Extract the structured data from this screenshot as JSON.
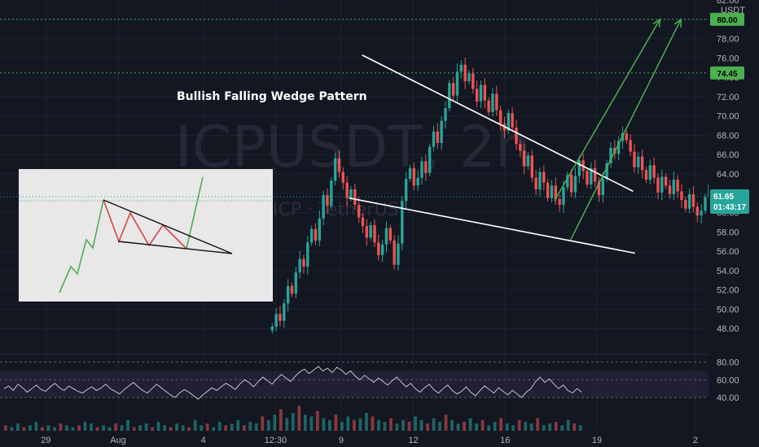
{
  "chart_data": {
    "type": "candlestick",
    "symbol_watermark": "ICPUSDT, 2h",
    "symbol_watermark_sub": "ICP · TetherUS",
    "annotation_title": "Bullish Falling Wedge Pattern",
    "currency_label": "USDT",
    "price_axis": {
      "range": [
        46,
        82
      ],
      "ticks": [
        82,
        80,
        78,
        76,
        74,
        72,
        70,
        68,
        66,
        64,
        62,
        60,
        58,
        56,
        54,
        52,
        50,
        48
      ]
    },
    "x_axis": {
      "range": [
        0,
        108
      ],
      "ticks": [
        {
          "label": "29",
          "x": 7
        },
        {
          "label": "Aug",
          "x": 18
        },
        {
          "label": "4",
          "x": 31
        },
        {
          "label": "12:30",
          "x": 42
        },
        {
          "label": "9",
          "x": 52
        },
        {
          "label": "12",
          "x": 63
        },
        {
          "label": "16",
          "x": 77
        },
        {
          "label": "19",
          "x": 91
        },
        {
          "label": "2",
          "x": 106
        }
      ]
    },
    "price_levels": [
      {
        "value": 80.0,
        "label": "80.00",
        "color": "#4caf50"
      },
      {
        "value": 74.45,
        "label": "74.45",
        "color": "#4caf50"
      }
    ],
    "last_price": {
      "value": 61.65,
      "label": "61.65",
      "countdown": "01:43:17",
      "color": "#26a69a"
    },
    "wedge_lines": [
      {
        "from": [
          55.2,
          76.3
        ],
        "to": [
          96.5,
          62.2
        ]
      },
      {
        "from": [
          53.2,
          61.5
        ],
        "to": [
          96.8,
          55.8
        ]
      }
    ],
    "projection_arrows": [
      {
        "from": [
          84.5,
          61.2
        ],
        "to": [
          100.6,
          80.0
        ]
      },
      {
        "from": [
          87.0,
          57.2
        ],
        "to": [
          103.8,
          80.0
        ]
      }
    ],
    "candles_start_x": 41.5,
    "candles_step": 0.6,
    "closes": [
      48.2,
      49.5,
      48.8,
      50.6,
      52.4,
      51.6,
      53.8,
      55.2,
      54.4,
      56.9,
      58.3,
      57.1,
      59.4,
      61.8,
      60.7,
      63.3,
      65.6,
      64.2,
      63.1,
      61.5,
      62.4,
      60.8,
      59.5,
      58.6,
      57.4,
      58.7,
      56.9,
      55.6,
      56.7,
      58.4,
      57.1,
      54.6,
      56.8,
      61.2,
      63.5,
      64.6,
      62.8,
      63.6,
      65.3,
      64.1,
      66.8,
      68.4,
      67.2,
      69.5,
      70.8,
      73.4,
      72.1,
      74.6,
      75.3,
      73.6,
      74.4,
      72.8,
      71.5,
      73.2,
      71.6,
      70.4,
      72.3,
      70.6,
      69.2,
      68.5,
      70.3,
      68.8,
      67.1,
      66.4,
      64.8,
      65.9,
      63.6,
      62.4,
      64.2,
      63.1,
      61.5,
      62.8,
      61.4,
      60.8,
      62.6,
      63.9,
      62.1,
      63.8,
      65.4,
      64.3,
      62.9,
      64.6,
      63.2,
      61.8,
      63.5,
      65.1,
      66.7,
      66.1,
      67.4,
      68.2,
      67.5,
      66.3,
      64.7,
      65.8,
      64.4,
      63.4,
      64.9,
      63.6,
      62.1,
      63.7,
      62.8,
      61.9,
      63.4,
      62.2,
      61.3,
      60.4,
      61.9,
      60.6,
      59.7,
      60.2,
      61.6,
      62.9,
      62.1,
      63.4,
      64.6,
      63.9,
      65.5,
      66.8,
      67.6,
      66.4,
      65.1,
      63.8,
      64.7,
      63.6,
      62.2,
      61.5,
      62.6,
      61.4,
      60.8,
      61.9,
      61.65
    ],
    "rsi": {
      "levels": [
        80,
        60,
        40
      ],
      "band": [
        40,
        70
      ],
      "values": [
        50,
        53,
        48,
        55,
        51,
        46,
        50,
        54,
        49,
        47,
        52,
        56,
        51,
        48,
        53,
        50,
        47,
        45,
        49,
        52,
        48,
        51,
        55,
        50,
        47,
        44,
        49,
        53,
        57,
        52,
        48,
        45,
        50,
        55,
        51,
        47,
        43,
        40,
        45,
        49,
        46,
        42,
        38,
        43,
        47,
        51,
        48,
        52,
        56,
        53,
        49,
        55,
        60,
        57,
        52,
        58,
        63,
        59,
        55,
        61,
        66,
        62,
        58,
        64,
        69,
        72,
        67,
        71,
        75,
        70,
        73,
        68,
        74,
        71,
        66,
        70,
        64,
        60,
        65,
        61,
        57,
        62,
        58,
        54,
        59,
        63,
        57,
        52,
        56,
        50,
        46,
        51,
        55,
        49,
        45,
        50,
        54,
        48,
        44,
        47,
        52,
        46,
        42,
        48,
        53,
        49,
        45,
        51,
        47,
        43,
        48,
        44,
        40,
        46,
        50,
        58,
        63,
        57,
        61,
        55,
        50,
        54,
        48,
        45,
        50,
        46
      ]
    },
    "volume": {
      "values": [
        3,
        2,
        4,
        2,
        3,
        5,
        2,
        3,
        2,
        4,
        3,
        2,
        3,
        5,
        4,
        2,
        3,
        2,
        4,
        3,
        6,
        2,
        3,
        4,
        2,
        5,
        3,
        2,
        4,
        3,
        2,
        6,
        3,
        4,
        2,
        5,
        3,
        4,
        6,
        3,
        5,
        4,
        8,
        6,
        9,
        12,
        7,
        10,
        14,
        9,
        8,
        11,
        7,
        6,
        9,
        5,
        8,
        6,
        7,
        10,
        8,
        6,
        5,
        7,
        4,
        6,
        5,
        8,
        6,
        4,
        7,
        5,
        9,
        6,
        4,
        5,
        7,
        4,
        6,
        3,
        5,
        7,
        4,
        3,
        6,
        5,
        4,
        7,
        3,
        4,
        5,
        3,
        6,
        4,
        3
      ]
    },
    "inset": {
      "background": "#e8e8e8",
      "up_color": "#4caf50",
      "down_color": "#d84343"
    },
    "colors": {
      "up": "#26a69a",
      "down": "#ef5350",
      "wedge": "#ffffff",
      "arrow": "#4caf50",
      "rsi_line": "#d1d4dc",
      "rsi_band": "#2a2440"
    }
  }
}
